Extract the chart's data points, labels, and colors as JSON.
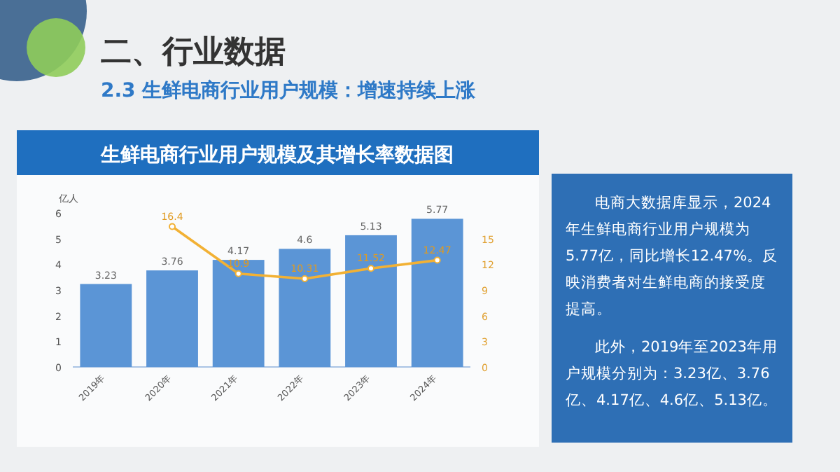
{
  "chart_data": {
    "type": "bar",
    "title": "生鲜电商行业用户规模及其增长率数据图",
    "ylabel": "亿人",
    "categories": [
      "2019年",
      "2020年",
      "2021年",
      "2022年",
      "2023年",
      "2024年"
    ],
    "series": [
      {
        "color": "#5b95d6",
        "values": [
          3.23,
          3.76,
          4.17,
          4.6,
          5.13,
          5.77
        ]
      },
      {
        "type": "line",
        "axis": "y2",
        "color": "#f2b134",
        "values": [
          null,
          16.4,
          10.9,
          10.31,
          11.52,
          12.47
        ]
      }
    ],
    "ylim": [
      0,
      6
    ],
    "yticks": [
      0,
      1,
      2,
      3,
      4,
      5,
      6
    ],
    "y2lim": [
      0,
      18
    ],
    "y2ticks": [
      0,
      3,
      6,
      9,
      12,
      15
    ],
    "data_labels": true,
    "marker": "circle",
    "grid": false,
    "annotations": [
      "二、行业数据",
      "2.3 生鲜电商行业用户规模：增速持续上涨",
      "电商大数据库显示，2024年生鲜电商行业用户规模为5.77亿，同比增长12.47%。反映消费者对生鲜电商的接受度提高。",
      "此外，2019年至2023年用户规模分别为：3.23亿、3.76亿、4.17亿、4.6亿、5.13亿。"
    ]
  }
}
